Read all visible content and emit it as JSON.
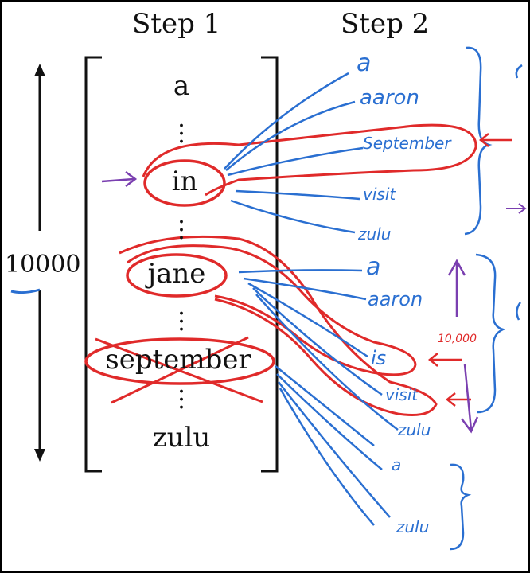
{
  "steps": {
    "step1": "Step 1",
    "step2": "Step 2"
  },
  "vocab_size": "10000",
  "step1_words": [
    "a",
    "in",
    "jane",
    "september",
    "zulu"
  ],
  "group_in": {
    "words": [
      "a",
      "aaron",
      "September",
      "visit",
      "zulu"
    ]
  },
  "group_jane": {
    "words": [
      "a",
      "aaron",
      "is",
      "visit",
      "zulu"
    ],
    "count_note": "10,000"
  },
  "group_sept": {
    "words": [
      "a",
      "zulu"
    ]
  },
  "colors": {
    "pen_blue": "#2a6fd1",
    "pen_red": "#e02a2a",
    "pen_purple": "#7a3fb0",
    "ink": "#111111"
  }
}
